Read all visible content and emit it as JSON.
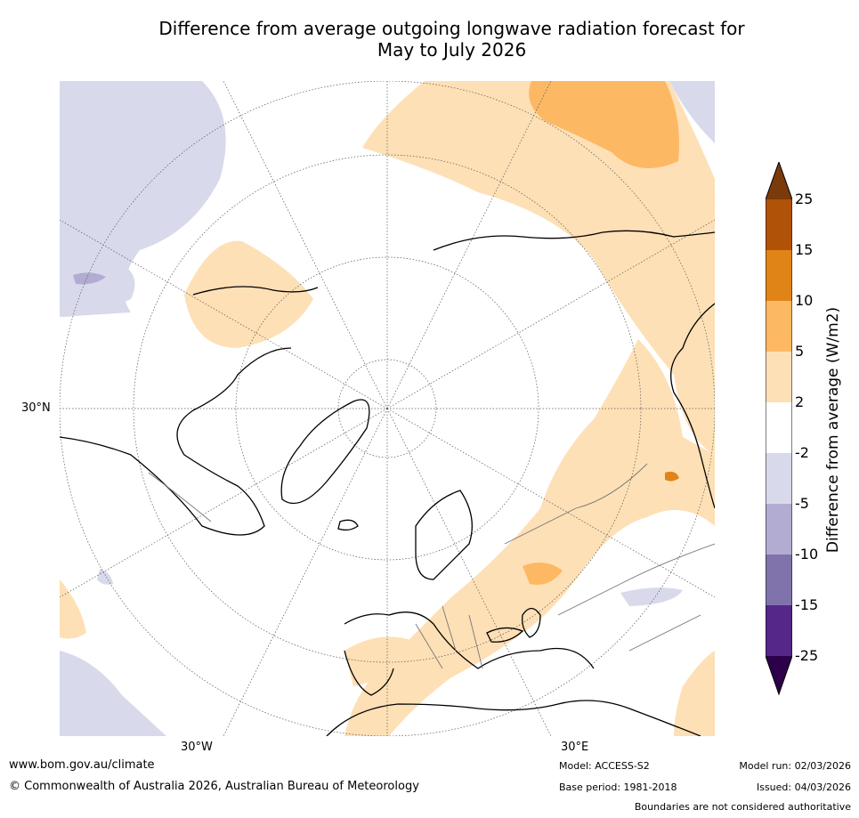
{
  "header": {
    "title_line1": "Difference from average outgoing longwave radiation forecast for",
    "title_line2": "May to July 2026"
  },
  "map": {
    "lat_label": "30°N",
    "lon_label_west": "30°W",
    "lon_label_east": "30°E"
  },
  "colorbar": {
    "title": "Difference from average (W/m2)",
    "ticks": [
      "25",
      "15",
      "10",
      "5",
      "2",
      "-2",
      "-5",
      "-10",
      "-15",
      "-25"
    ],
    "colors": {
      "above_max": "#7a3a0a",
      "band_15_25": "#b05208",
      "band_10_15": "#e08418",
      "band_5_10": "#fdb863",
      "band_2_5": "#fee0b6",
      "band_neg2_2": "#ffffff",
      "band_neg5_neg2": "#d8daeb",
      "band_neg10_neg5": "#b2abd2",
      "band_neg15_neg10": "#8073ac",
      "band_neg25_neg15": "#542788",
      "below_min": "#2d004b"
    }
  },
  "footer": {
    "url": "www.bom.gov.au/climate",
    "copyright": "© Commonwealth of Australia 2026, Australian Bureau of Meteorology",
    "model": "Model: ACCESS-S2",
    "base_period": "Base period: 1981-2018",
    "model_run": "Model run: 02/03/2026",
    "issued": "Issued: 04/03/2026",
    "disclaimer": "Boundaries are not considered authoritative"
  }
}
